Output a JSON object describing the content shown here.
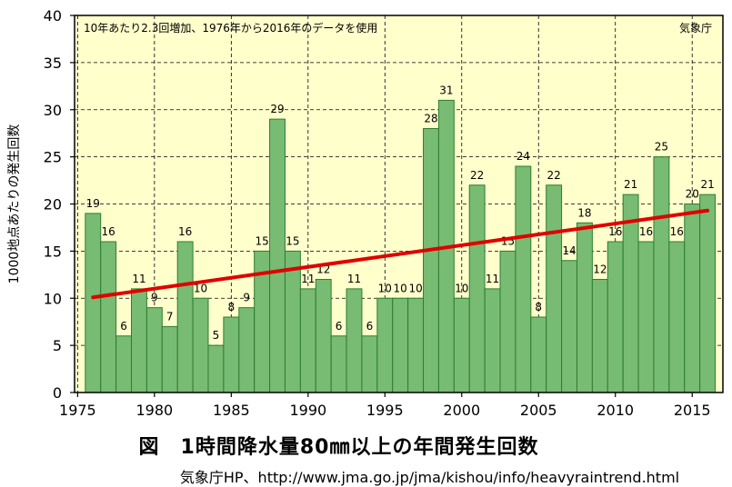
{
  "chart_data": {
    "type": "bar",
    "note": "10年あたり2.3回増加、1976年から2016年のデータを使用",
    "source_mark": "気象庁",
    "ylabel": "1000地点あたりの発生回数",
    "xlabel": "",
    "ylim": [
      0,
      40
    ],
    "yticks": [
      0,
      5,
      10,
      15,
      20,
      25,
      30,
      35,
      40
    ],
    "xticks": [
      1975,
      1980,
      1985,
      1990,
      1995,
      2000,
      2005,
      2010,
      2015
    ],
    "grid": true,
    "bar_color": "#78bb72",
    "bar_edge_color": "#2e7d32",
    "plot_background": "#ffffcc",
    "trend_color": "#e00000",
    "x": [
      1976,
      1977,
      1978,
      1979,
      1980,
      1981,
      1982,
      1983,
      1984,
      1985,
      1986,
      1987,
      1988,
      1989,
      1990,
      1991,
      1992,
      1993,
      1994,
      1995,
      1996,
      1997,
      1998,
      1999,
      2000,
      2001,
      2002,
      2003,
      2004,
      2005,
      2006,
      2007,
      2008,
      2009,
      2010,
      2011,
      2012,
      2013,
      2014,
      2015,
      2016
    ],
    "values": [
      19,
      16,
      6,
      11,
      9,
      7,
      16,
      10,
      5,
      8,
      9,
      15,
      29,
      15,
      11,
      12,
      6,
      11,
      6,
      10,
      10,
      10,
      28,
      31,
      10,
      22,
      11,
      15,
      24,
      8,
      22,
      14,
      18,
      12,
      16,
      21,
      16,
      25,
      16,
      20,
      21
    ],
    "trend": {
      "x": [
        1976,
        2016
      ],
      "y": [
        10.1,
        19.3
      ]
    }
  },
  "caption": {
    "title": "図　1時間降水量80㎜以上の年間発生回数",
    "source": "気象庁HP、http://www.jma.go.jp/jma/kishou/info/heavyraintrend.html"
  }
}
